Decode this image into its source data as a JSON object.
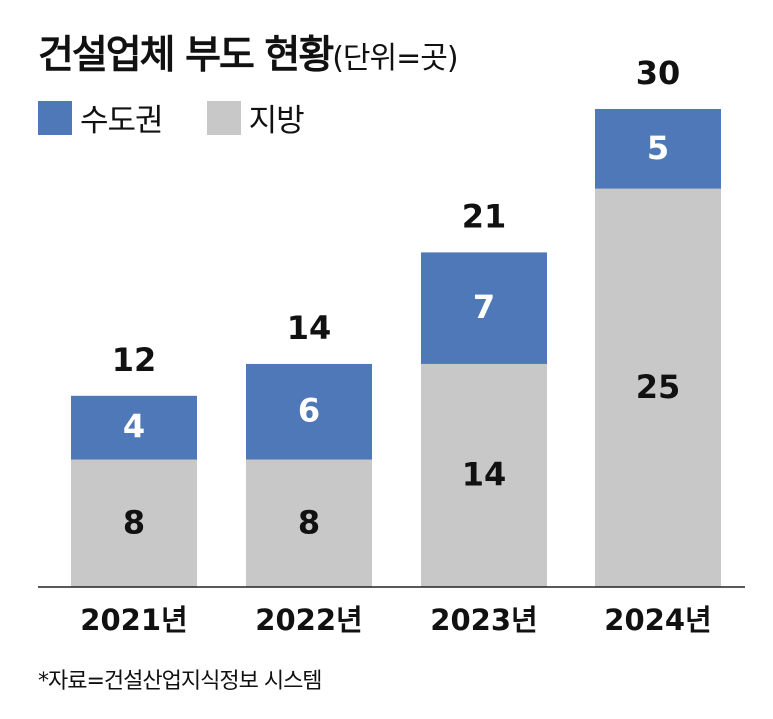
{
  "header": {
    "title": "건설업체 부도 현황",
    "unit": "(단위=곳)"
  },
  "legend": [
    {
      "label": "수도권",
      "color": "#4f78b8"
    },
    {
      "label": "지방",
      "color": "#c8c8c8"
    }
  ],
  "chart_data": {
    "type": "bar",
    "stacked": true,
    "title": "건설업체 부도 현황",
    "unit": "(단위=곳)",
    "categories": [
      "2021년",
      "2022년",
      "2023년",
      "2024년"
    ],
    "series": [
      {
        "name": "지방",
        "values": [
          8,
          8,
          14,
          25
        ],
        "color": "#c8c8c8"
      },
      {
        "name": "수도권",
        "values": [
          4,
          6,
          7,
          5
        ],
        "color": "#4f78b8"
      }
    ],
    "totals": [
      12,
      14,
      21,
      30
    ],
    "ylim": [
      0,
      30
    ],
    "grid": false,
    "legend_position": "top-left"
  },
  "footer": {
    "source": "*자료=건설산업지식정보 시스템"
  }
}
